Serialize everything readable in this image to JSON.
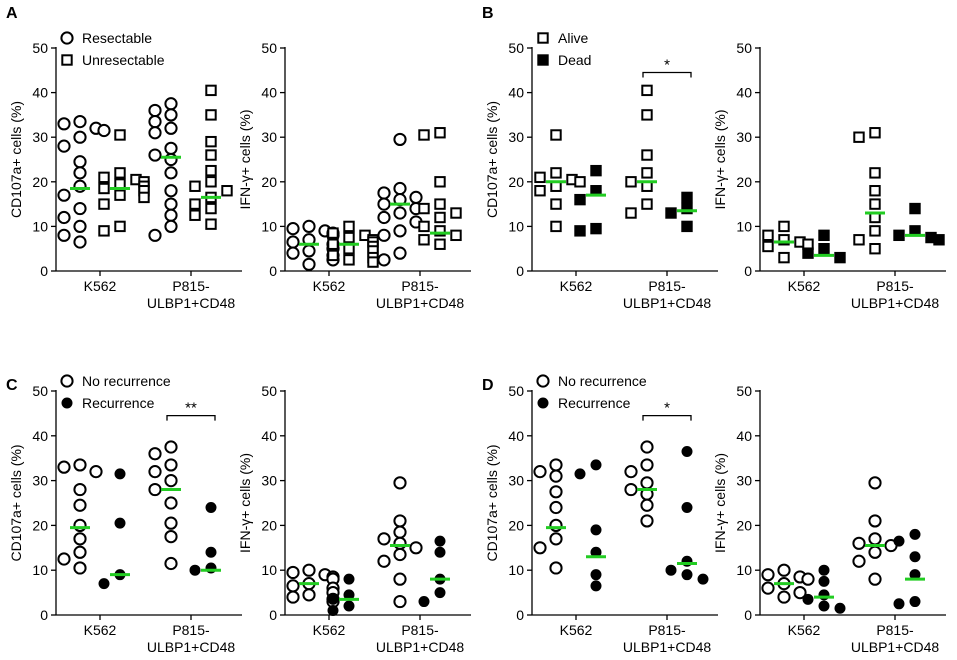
{
  "chart_data": [
    {
      "type": "scatter",
      "panel": "A",
      "ylabel": "CD107a+ cells (%)",
      "ylim": [
        0,
        50
      ],
      "yticks": [
        0,
        10,
        20,
        30,
        40,
        50
      ],
      "categories": [
        "K562",
        "P815-\nULBP1+CD48"
      ],
      "legend": [
        {
          "label": "Resectable",
          "marker": "open-circle"
        },
        {
          "label": "Unresectable",
          "marker": "open-square"
        }
      ],
      "series": [
        {
          "name": "Resectable",
          "marker": "open-circle",
          "groups": [
            {
              "category": 0,
              "median": 18.5,
              "values": [
                33.5,
                33,
                32,
                31.5,
                30,
                28,
                24.5,
                22,
                19,
                17,
                14,
                12,
                10,
                8,
                6.5
              ]
            },
            {
              "category": 1,
              "median": 25.5,
              "values": [
                37.5,
                36,
                35,
                33.5,
                32,
                31,
                27.5,
                26,
                25,
                22,
                18,
                15,
                12.5,
                10,
                8
              ]
            }
          ]
        },
        {
          "name": "Unresectable",
          "marker": "open-square",
          "groups": [
            {
              "category": 0,
              "median": 18.5,
              "values": [
                30.5,
                22,
                21,
                20.5,
                20,
                19.5,
                19,
                18.5,
                18,
                17,
                16.5,
                15,
                10,
                9
              ]
            },
            {
              "category": 1,
              "median": 16.5,
              "values": [
                40.5,
                35,
                29,
                26,
                22.5,
                20,
                19,
                18,
                16.5,
                15,
                14,
                12.5,
                10.5
              ]
            }
          ]
        }
      ]
    },
    {
      "type": "scatter",
      "panel": "A",
      "ylabel": "IFN-γ+ cells (%)",
      "ylim": [
        0,
        50
      ],
      "yticks": [
        0,
        10,
        20,
        30,
        40,
        50
      ],
      "categories": [
        "K562",
        "P815-\nULBP1+CD48"
      ],
      "series": [
        {
          "name": "Resectable",
          "marker": "open-circle",
          "groups": [
            {
              "category": 0,
              "median": 6,
              "values": [
                10,
                9.5,
                9,
                8.5,
                8,
                7,
                6.5,
                6,
                5,
                4.5,
                4,
                3.5,
                2.5,
                1.5
              ]
            },
            {
              "category": 1,
              "median": 15,
              "values": [
                29.5,
                18.5,
                17.5,
                16.5,
                16,
                15,
                14,
                13,
                12,
                11,
                9,
                8,
                4,
                2.5
              ]
            }
          ]
        },
        {
          "name": "Unresectable",
          "marker": "open-square",
          "groups": [
            {
              "category": 0,
              "median": 6,
              "values": [
                10,
                8.5,
                8,
                7.5,
                7,
                6.5,
                6,
                5.5,
                5,
                4.5,
                3.5,
                3,
                2.5,
                2
              ]
            },
            {
              "category": 1,
              "median": 8.5,
              "values": [
                31,
                30.5,
                20,
                15,
                14,
                13,
                12,
                10,
                9,
                8,
                7,
                6
              ]
            }
          ]
        }
      ]
    },
    {
      "type": "scatter",
      "panel": "B",
      "ylabel": "CD107a+ cells (%)",
      "ylim": [
        0,
        50
      ],
      "yticks": [
        0,
        10,
        20,
        30,
        40,
        50
      ],
      "categories": [
        "K562",
        "P815-\nULBP1+CD48"
      ],
      "legend": [
        {
          "label": "Alive",
          "marker": "open-square"
        },
        {
          "label": "Dead",
          "marker": "filled-square"
        }
      ],
      "significance": [
        {
          "category": 1,
          "text": "*"
        }
      ],
      "series": [
        {
          "name": "Alive",
          "marker": "open-square",
          "groups": [
            {
              "category": 0,
              "median": 20,
              "values": [
                30.5,
                22,
                21,
                20.5,
                20,
                19,
                18,
                15,
                10
              ]
            },
            {
              "category": 1,
              "median": 20,
              "values": [
                40.5,
                35,
                26,
                22,
                20,
                19,
                15,
                13
              ]
            }
          ]
        },
        {
          "name": "Dead",
          "marker": "filled-square",
          "groups": [
            {
              "category": 0,
              "median": 17,
              "values": [
                22.5,
                18,
                16,
                9.5,
                9
              ]
            },
            {
              "category": 1,
              "median": 13.5,
              "values": [
                16.5,
                14,
                13,
                10
              ]
            }
          ]
        }
      ]
    },
    {
      "type": "scatter",
      "panel": "B",
      "ylabel": "IFN-γ+ cells (%)",
      "ylim": [
        0,
        50
      ],
      "yticks": [
        0,
        10,
        20,
        30,
        40,
        50
      ],
      "categories": [
        "K562",
        "P815-\nULBP1+CD48"
      ],
      "series": [
        {
          "name": "Alive",
          "marker": "open-square",
          "groups": [
            {
              "category": 0,
              "median": 6.5,
              "values": [
                10,
                8,
                7,
                6.5,
                6,
                5.5,
                3
              ]
            },
            {
              "category": 1,
              "median": 13,
              "values": [
                31,
                30,
                22,
                18,
                15,
                12,
                9,
                7,
                5
              ]
            }
          ]
        },
        {
          "name": "Dead",
          "marker": "filled-square",
          "groups": [
            {
              "category": 0,
              "median": 3.5,
              "values": [
                8,
                5,
                4,
                3
              ]
            },
            {
              "category": 1,
              "median": 8,
              "values": [
                14,
                9,
                8,
                7.5,
                7
              ]
            }
          ]
        }
      ]
    },
    {
      "type": "scatter",
      "panel": "C",
      "ylabel": "CD107a+ cells (%)",
      "ylim": [
        0,
        50
      ],
      "yticks": [
        0,
        10,
        20,
        30,
        40,
        50
      ],
      "categories": [
        "K562",
        "P815-\nULBP1+CD48"
      ],
      "legend": [
        {
          "label": "No recurrence",
          "marker": "open-circle"
        },
        {
          "label": "Recurrence",
          "marker": "filled-circle"
        }
      ],
      "significance": [
        {
          "category": 1,
          "text": "**"
        }
      ],
      "series": [
        {
          "name": "No recurrence",
          "marker": "open-circle",
          "groups": [
            {
              "category": 0,
              "median": 19.5,
              "values": [
                33.5,
                33,
                32,
                28,
                24.5,
                20,
                17,
                14,
                12.5,
                10.5
              ]
            },
            {
              "category": 1,
              "median": 28,
              "values": [
                37.5,
                36,
                33.5,
                32,
                30,
                28,
                25,
                20.5,
                17.5,
                11.5
              ]
            }
          ]
        },
        {
          "name": "Recurrence",
          "marker": "filled-circle",
          "groups": [
            {
              "category": 0,
              "median": 9,
              "values": [
                31.5,
                20.5,
                9,
                7
              ]
            },
            {
              "category": 1,
              "median": 10,
              "values": [
                24,
                14,
                10.5,
                10
              ]
            }
          ]
        }
      ]
    },
    {
      "type": "scatter",
      "panel": "C",
      "ylabel": "IFN-γ+ cells (%)",
      "ylim": [
        0,
        50
      ],
      "yticks": [
        0,
        10,
        20,
        30,
        40,
        50
      ],
      "categories": [
        "K562",
        "P815-\nULBP1+CD48"
      ],
      "series": [
        {
          "name": "No recurrence",
          "marker": "open-circle",
          "groups": [
            {
              "category": 0,
              "median": 7,
              "values": [
                10,
                9.5,
                9,
                8.5,
                8,
                7,
                6.5,
                6,
                5,
                4.5,
                4,
                3.5,
                3
              ]
            },
            {
              "category": 1,
              "median": 15.5,
              "values": [
                29.5,
                21,
                18.5,
                17,
                16,
                15,
                13.5,
                12,
                8,
                3
              ]
            }
          ]
        },
        {
          "name": "Recurrence",
          "marker": "filled-circle",
          "groups": [
            {
              "category": 0,
              "median": 3.5,
              "values": [
                8,
                4.5,
                3.5,
                2,
                1
              ]
            },
            {
              "category": 1,
              "median": 8,
              "values": [
                16.5,
                14,
                8,
                5,
                3
              ]
            }
          ]
        }
      ]
    },
    {
      "type": "scatter",
      "panel": "D",
      "ylabel": "CD107a+ cells (%)",
      "ylim": [
        0,
        50
      ],
      "yticks": [
        0,
        10,
        20,
        30,
        40,
        50
      ],
      "categories": [
        "K562",
        "P815-\nULBP1+CD48"
      ],
      "legend": [
        {
          "label": "No recurrence",
          "marker": "open-circle"
        },
        {
          "label": "Recurrence",
          "marker": "filled-circle"
        }
      ],
      "significance": [
        {
          "category": 1,
          "text": "*"
        }
      ],
      "series": [
        {
          "name": "No recurrence",
          "marker": "open-circle",
          "groups": [
            {
              "category": 0,
              "median": 19.5,
              "values": [
                33.5,
                32,
                31,
                27.5,
                24,
                20,
                17,
                15,
                10.5
              ]
            },
            {
              "category": 1,
              "median": 28,
              "values": [
                37.5,
                33.5,
                32,
                29.5,
                28,
                27,
                24.5,
                21
              ]
            }
          ]
        },
        {
          "name": "Recurrence",
          "marker": "filled-circle",
          "groups": [
            {
              "category": 0,
              "median": 13,
              "values": [
                33.5,
                31.5,
                19,
                14,
                9,
                6.5
              ]
            },
            {
              "category": 1,
              "median": 11.5,
              "values": [
                36.5,
                24,
                12,
                10,
                9,
                8
              ]
            }
          ]
        }
      ]
    },
    {
      "type": "scatter",
      "panel": "D",
      "ylabel": "IFN-γ+ cells (%)",
      "ylim": [
        0,
        50
      ],
      "yticks": [
        0,
        10,
        20,
        30,
        40,
        50
      ],
      "categories": [
        "K562",
        "P815-\nULBP1+CD48"
      ],
      "series": [
        {
          "name": "No recurrence",
          "marker": "open-circle",
          "groups": [
            {
              "category": 0,
              "median": 7,
              "values": [
                10,
                9,
                8.5,
                8,
                7,
                6,
                5,
                4
              ]
            },
            {
              "category": 1,
              "median": 15.5,
              "values": [
                29.5,
                21,
                17,
                16,
                15.5,
                14,
                12,
                8
              ]
            }
          ]
        },
        {
          "name": "Recurrence",
          "marker": "filled-circle",
          "groups": [
            {
              "category": 0,
              "median": 4,
              "values": [
                10,
                7.5,
                4.5,
                3.5,
                2,
                1.5
              ]
            },
            {
              "category": 1,
              "median": 8,
              "values": [
                18,
                16.5,
                13,
                9,
                3,
                2.5
              ]
            }
          ]
        }
      ]
    }
  ],
  "colors": {
    "median": "#22cc22",
    "ink": "#000000"
  }
}
